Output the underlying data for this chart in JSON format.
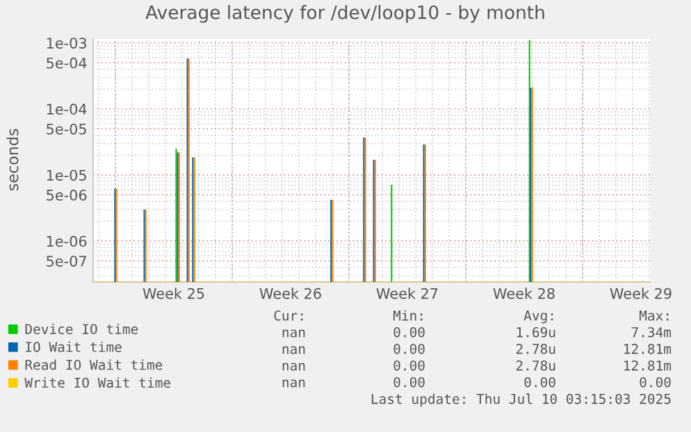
{
  "chart_data": {
    "type": "bar",
    "title": "Average latency for /dev/loop10 - by month",
    "ylabel": "seconds",
    "log": "y",
    "grid": true,
    "legend": "bottom",
    "xlim": [
      "2025-06-14T16:00",
      "2025-07-18T02:00"
    ],
    "xticks": [
      {
        "value": "2025-06-16T00:00",
        "label": null
      },
      {
        "value": "2025-06-19T12:00",
        "label": "Week 25"
      },
      {
        "value": "2025-06-23T00:00",
        "label": null
      },
      {
        "value": "2025-06-26T12:00",
        "label": "Week 26"
      },
      {
        "value": "2025-06-30T00:00",
        "label": null
      },
      {
        "value": "2025-07-03T12:00",
        "label": "Week 27"
      },
      {
        "value": "2025-07-07T00:00",
        "label": null
      },
      {
        "value": "2025-07-10T12:00",
        "label": "Week 28"
      },
      {
        "value": "2025-07-14T00:00",
        "label": null
      },
      {
        "value": "2025-07-17T12:00",
        "label": "Week 29"
      }
    ],
    "ylim": [
      2.4e-07,
      0.00115
    ],
    "yticks": [
      {
        "value": 0.001,
        "label": "1e-03"
      },
      {
        "value": 0.0005,
        "label": "5e-04"
      },
      {
        "value": 0.0001,
        "label": "1e-04"
      },
      {
        "value": 5e-05,
        "label": "5e-05"
      },
      {
        "value": 1e-05,
        "label": "1e-05"
      },
      {
        "value": 5e-06,
        "label": "5e-06"
      },
      {
        "value": 1e-06,
        "label": "1e-06"
      },
      {
        "value": 5e-07,
        "label": "5e-07"
      }
    ],
    "series": [
      {
        "name": "Device IO time",
        "color": "#00cc00",
        "x": [
          "2025-06-19T18:40",
          "2025-07-02T16:30",
          "2025-07-10T23:00"
        ],
        "values": [
          2.5e-05,
          7.1e-06,
          0.0011
        ]
      },
      {
        "name": "IO Wait time",
        "color": "#0066b3",
        "x": [
          "2025-06-16T00:30",
          "2025-06-17T18:40",
          "2025-06-19T18:40",
          "2025-06-20T08:40",
          "2025-06-20T16:30",
          "2025-06-28T23:20",
          "2025-06-30T22:30",
          "2025-07-01T12:40",
          "2025-07-04T12:40",
          "2025-07-10T22:30"
        ],
        "values": [
          6.2e-06,
          3e-06,
          2.2e-05,
          0.00058,
          1.85e-05,
          4.2e-06,
          3.7e-05,
          1.7e-05,
          2.9e-05,
          0.00021
        ]
      },
      {
        "name": "Read IO Wait time",
        "color": "#ff8000",
        "x": [
          "2025-06-16T00:30",
          "2025-06-17T18:40",
          "2025-06-19T18:40",
          "2025-06-20T08:40",
          "2025-06-20T16:30",
          "2025-06-28T23:20",
          "2025-06-30T22:30",
          "2025-07-01T12:40",
          "2025-07-04T12:40",
          "2025-07-10T22:30"
        ],
        "values": [
          6.2e-06,
          3e-06,
          2.2e-05,
          0.00058,
          1.85e-05,
          4.2e-06,
          3.7e-05,
          1.7e-05,
          2.9e-05,
          0.00021
        ]
      },
      {
        "name": "Write IO Wait time",
        "color": "#ffcc00"
      }
    ],
    "annotations": [
      "Cur:",
      "Min:",
      "Avg:",
      "Max:",
      "nan",
      "0.00",
      "1.69u",
      "7.34m",
      "nan",
      "0.00",
      "2.78u",
      "12.81m",
      "nan",
      "0.00",
      "2.78u",
      "12.81m",
      "nan",
      "0.00",
      "0.00",
      "0.00",
      "Last update: Thu Jul 10 03:15:03 2025"
    ]
  }
}
